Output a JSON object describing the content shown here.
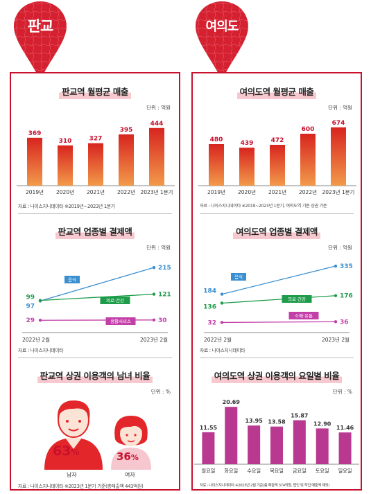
{
  "left": {
    "pin_label": "판교",
    "sales": {
      "title": "판교역 월평균 매출",
      "unit": "단위 : 억원",
      "source": "자료 : 나이스지니데이타   ※2019년~2023년 1분기"
    },
    "biz": {
      "title": "판교역 업종별 결제액",
      "unit": "단위 : 억원",
      "source": "자료 : 나이스지니데이타"
    },
    "gender": {
      "title": "판교역 상권 이용객의 남녀 비율",
      "unit": "단위 : %",
      "male_label": "남자",
      "female_label": "여자",
      "male_value": "63",
      "female_value": "36",
      "pct": "%",
      "source": "자료 : 나이스지니데이타   ※2023년 1분기 기준(총매출액 443억원)"
    }
  },
  "right": {
    "pin_label": "여의도",
    "sales": {
      "title": "여의도역 월평균 매출",
      "unit": "단위 : 억원",
      "source": "자료 : 나이스지니데이타   ※2019~2023년 1분기, 여의도역 기준 상권 기준"
    },
    "biz": {
      "title": "여의도역 업종별 결제액",
      "unit": "단위 : 억원",
      "source": "자료 : 나이스지니데이타"
    },
    "weekday": {
      "title": "여의도역 상권 이용객의 요일별 비율",
      "unit": "단위 : %",
      "source": "자료 : 나이스지니데이타   ※2023년 2월 기준(총 매출액 374억원, 법인 및 작업 매출액 제외)"
    }
  },
  "colors": {
    "brand_red": "#c8102e",
    "bar_top": "#d8241f",
    "bar_bottom": "#f29a4a",
    "line_blue": "#3a8fd0",
    "line_green": "#1e9c4a",
    "line_magenta": "#c23fa8",
    "weekday_bar": "#b8398f",
    "person_red": "#e3262a",
    "face": "#fbe3d6"
  },
  "chart_data": [
    {
      "id": "pangyo-sales",
      "type": "bar",
      "categories": [
        "2019년",
        "2020년",
        "2021년",
        "2022년",
        "2023년 1분기"
      ],
      "values": [
        369,
        310,
        327,
        395,
        444
      ],
      "title": "판교역 월평균 매출",
      "xlabel": "",
      "ylabel": "",
      "ylim": [
        0,
        480
      ]
    },
    {
      "id": "pangyo-biz",
      "type": "line",
      "categories": [
        "2022년 2월",
        "2023년 2월"
      ],
      "series": [
        {
          "name": "음식",
          "values": [
            97,
            215
          ]
        },
        {
          "name": "의료·건강",
          "values": [
            99,
            121
          ]
        },
        {
          "name": "생활서비스",
          "values": [
            29,
            30
          ]
        }
      ],
      "title": "판교역 업종별 결제액",
      "xlabel": "",
      "ylabel": ""
    },
    {
      "id": "pangyo-gender",
      "type": "pie",
      "categories": [
        "남자",
        "여자"
      ],
      "values": [
        63,
        36
      ],
      "title": "판교역 상권 이용객의 남녀 비율"
    },
    {
      "id": "yeouido-sales",
      "type": "bar",
      "categories": [
        "2019년",
        "2020년",
        "2021년",
        "2022년",
        "2023년 1분기"
      ],
      "values": [
        480,
        439,
        472,
        600,
        674
      ],
      "title": "여의도역 월평균 매출",
      "xlabel": "",
      "ylabel": "",
      "ylim": [
        0,
        720
      ]
    },
    {
      "id": "yeouido-biz",
      "type": "line",
      "categories": [
        "2022년 2월",
        "2023년 2월"
      ],
      "series": [
        {
          "name": "음식",
          "values": [
            184,
            335
          ]
        },
        {
          "name": "의료·건강",
          "values": [
            136,
            176
          ]
        },
        {
          "name": "소매·유통",
          "values": [
            32,
            36
          ]
        }
      ],
      "title": "여의도역 업종별 결제액",
      "xlabel": "",
      "ylabel": ""
    },
    {
      "id": "yeouido-weekday",
      "type": "bar",
      "categories": [
        "월요일",
        "화요일",
        "수요일",
        "목요일",
        "금요일",
        "토요일",
        "일요일"
      ],
      "values": [
        11.55,
        20.69,
        13.95,
        13.58,
        15.87,
        12.9,
        11.46
      ],
      "title": "여의도역 상권 이용객의 요일별 비율",
      "xlabel": "",
      "ylabel": "",
      "ylim": [
        0,
        22
      ]
    }
  ]
}
